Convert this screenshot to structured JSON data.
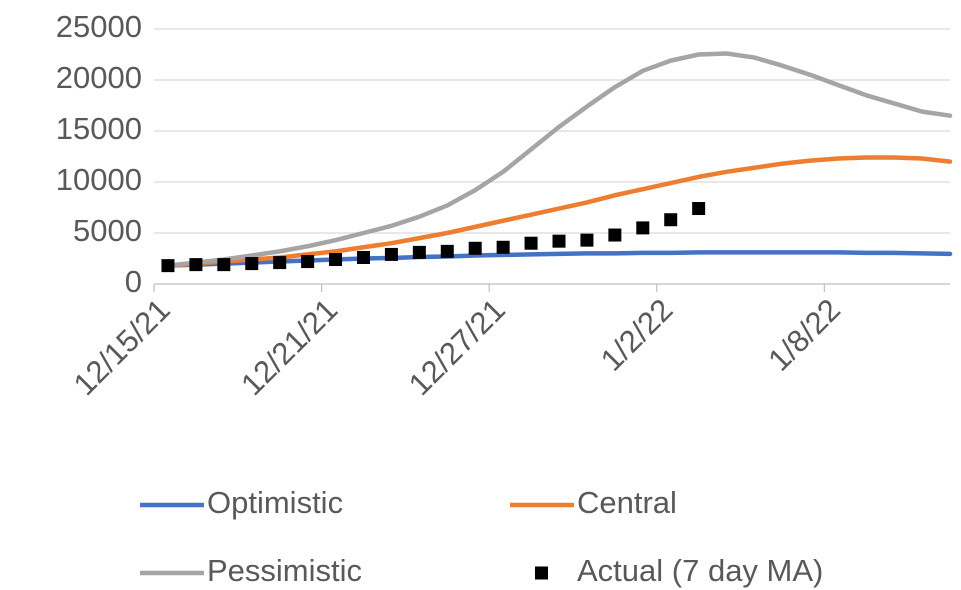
{
  "chart_data": {
    "type": "line",
    "categories": [
      "12/15/21",
      null,
      null,
      null,
      null,
      null,
      "12/21/21",
      null,
      null,
      null,
      null,
      null,
      "12/27/21",
      null,
      null,
      null,
      null,
      null,
      "1/2/22",
      null,
      null,
      null,
      null,
      null,
      "1/8/22",
      null,
      null,
      null,
      null
    ],
    "series": [
      {
        "name": "Optimistic",
        "color": "#4472c4",
        "style": "line",
        "values": [
          1800,
          1900,
          2000,
          2100,
          2200,
          2300,
          2400,
          2500,
          2550,
          2650,
          2700,
          2800,
          2850,
          2900,
          2950,
          3000,
          3000,
          3050,
          3050,
          3100,
          3100,
          3100,
          3100,
          3100,
          3100,
          3050,
          3050,
          3000,
          2950
        ]
      },
      {
        "name": "Central",
        "color": "#ed7d31",
        "style": "line",
        "values": [
          1800,
          2000,
          2200,
          2400,
          2600,
          2900,
          3200,
          3600,
          4000,
          4500,
          5000,
          5600,
          6200,
          6800,
          7400,
          8000,
          8700,
          9300,
          9900,
          10500,
          11000,
          11400,
          11800,
          12100,
          12300,
          12400,
          12400,
          12300,
          12000
        ]
      },
      {
        "name": "Pessimistic",
        "color": "#a5a5a5",
        "style": "line",
        "values": [
          1800,
          2100,
          2400,
          2800,
          3200,
          3700,
          4300,
          5000,
          5700,
          6600,
          7700,
          9200,
          11000,
          13200,
          15400,
          17400,
          19300,
          20900,
          21900,
          22500,
          22600,
          22200,
          21400,
          20500,
          19500,
          18500,
          17700,
          16900,
          16500
        ]
      },
      {
        "name": "Actual (7 day MA)",
        "color": "#000000",
        "style": "marker",
        "values": [
          1800,
          1900,
          1900,
          2000,
          2100,
          2200,
          2400,
          2600,
          2900,
          3100,
          3200,
          3500,
          3600,
          4000,
          4200,
          4300,
          4800,
          5500,
          6300,
          7400,
          null,
          null,
          null,
          null,
          null,
          null,
          null,
          null,
          null
        ]
      }
    ],
    "ylim": [
      0,
      25000
    ],
    "yticks": [
      0,
      5000,
      10000,
      15000,
      20000,
      25000
    ],
    "grid": true
  }
}
